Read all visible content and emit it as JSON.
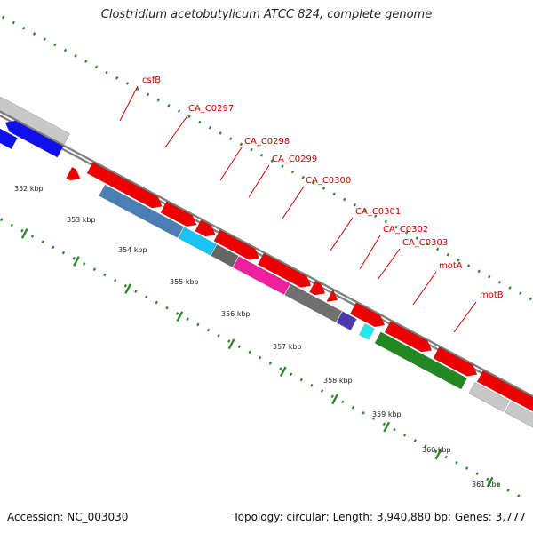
{
  "title": "Clostridium acetobutylicum ATCC 824, complete genome",
  "footer": {
    "accession": "Accession: NC_003030",
    "topology": "Topology: circular; Length: 3,940,880 bp; Genes: 3,777"
  },
  "colors": {
    "gene_red": "#ee0000",
    "gene_blue": "#1010ee",
    "gene_gray": "#c8c8c8",
    "tick_green": "#2a8a2a",
    "backbone": "#808080",
    "label_red": "#cc0000"
  },
  "kbp_labels": [
    "352 kbp",
    "353 kbp",
    "354 kbp",
    "355 kbp",
    "356 kbp",
    "357 kbp",
    "358 kbp",
    "359 kbp",
    "360 kbp",
    "361 kbp"
  ],
  "gene_labels": [
    "csfB",
    "CA_C0297",
    "CA_C0298",
    "CA_C0299",
    "CA_C0300",
    "CA_C0301",
    "CA_C0302",
    "CA_C0303",
    "motA",
    "motB"
  ]
}
